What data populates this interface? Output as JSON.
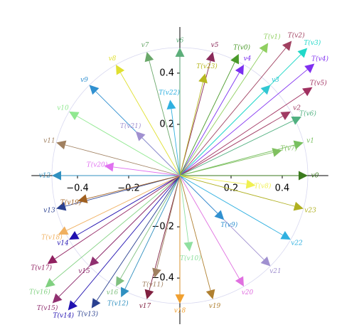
{
  "chart_data": {
    "type": "vector",
    "xlim": [
      -0.58,
      0.58
    ],
    "ylim": [
      -0.58,
      0.58
    ],
    "xticks": [
      {
        "value": -0.4,
        "label": "−0.4"
      },
      {
        "value": -0.2,
        "label": "−0.2"
      },
      0.2,
      0.4
    ],
    "yticks": [
      {
        "value": -0.4,
        "label": "−0.4"
      },
      {
        "value": -0.2,
        "label": "−0.2"
      },
      0.2,
      0.4
    ],
    "arrows": [
      {
        "label": "v0",
        "x": 0.5,
        "y": 0,
        "color": "#3b7a1e"
      },
      {
        "label": "v1",
        "x": 0.483,
        "y": 0.129,
        "color": "#78c060"
      },
      {
        "label": "v2",
        "x": 0.433,
        "y": 0.25,
        "color": "#a03a62"
      },
      {
        "label": "v3",
        "x": 0.354,
        "y": 0.354,
        "color": "#34c4d4"
      },
      {
        "label": "v4",
        "x": 0.25,
        "y": 0.433,
        "color": "#7b2ff0"
      },
      {
        "label": "v5",
        "x": 0.129,
        "y": 0.483,
        "color": "#8a2a5a"
      },
      {
        "label": "v6",
        "x": 0,
        "y": 0.5,
        "color": "#5cae7a"
      },
      {
        "label": "v7",
        "x": -0.129,
        "y": 0.483,
        "color": "#6aa86a"
      },
      {
        "label": "v8",
        "x": -0.25,
        "y": 0.433,
        "color": "#e0e030"
      },
      {
        "label": "v9",
        "x": -0.354,
        "y": 0.354,
        "color": "#3090d0"
      },
      {
        "label": "v10",
        "x": -0.433,
        "y": 0.25,
        "color": "#90e890"
      },
      {
        "label": "v11",
        "x": -0.483,
        "y": 0.129,
        "color": "#a08060"
      },
      {
        "label": "v12",
        "x": -0.5,
        "y": 0,
        "color": "#3090c0"
      },
      {
        "label": "v13",
        "x": -0.483,
        "y": -0.129,
        "color": "#2a4090"
      },
      {
        "label": "v14",
        "x": -0.433,
        "y": -0.25,
        "color": "#2010b0"
      },
      {
        "label": "v15",
        "x": -0.354,
        "y": -0.354,
        "color": "#903070"
      },
      {
        "label": "v16",
        "x": -0.25,
        "y": -0.433,
        "color": "#80c080"
      },
      {
        "label": "v17",
        "x": -0.129,
        "y": -0.483,
        "color": "#802040"
      },
      {
        "label": "v18",
        "x": 0,
        "y": -0.5,
        "color": "#f0a030"
      },
      {
        "label": "v19",
        "x": 0.129,
        "y": -0.483,
        "color": "#b08030"
      },
      {
        "label": "v20",
        "x": 0.25,
        "y": -0.433,
        "color": "#e070e0"
      },
      {
        "label": "v21",
        "x": 0.354,
        "y": -0.354,
        "color": "#a090d0"
      },
      {
        "label": "v22",
        "x": 0.433,
        "y": -0.25,
        "color": "#30b0e0"
      },
      {
        "label": "v23",
        "x": 0.483,
        "y": -0.129,
        "color": "#b0b020"
      },
      {
        "label": "T(v0)",
        "x": 0.23,
        "y": 0.475,
        "color": "#4a9a2a"
      },
      {
        "label": "T(v1)",
        "x": 0.345,
        "y": 0.518,
        "color": "#90cf60"
      },
      {
        "label": "T(v2)",
        "x": 0.437,
        "y": 0.526,
        "color": "#a04060"
      },
      {
        "label": "T(v3)",
        "x": 0.498,
        "y": 0.498,
        "color": "#20d8c8"
      },
      {
        "label": "T(v4)",
        "x": 0.526,
        "y": 0.437,
        "color": "#8030f0"
      },
      {
        "label": "T(v5)",
        "x": 0.518,
        "y": 0.345,
        "color": "#a03060"
      },
      {
        "label": "T(v6)",
        "x": 0.475,
        "y": 0.23,
        "color": "#50b080"
      },
      {
        "label": "T(v7)",
        "x": 0.399,
        "y": 0.099,
        "color": "#80c060"
      },
      {
        "label": "T(v8)",
        "x": 0.296,
        "y": -0.038,
        "color": "#f0f050"
      },
      {
        "label": "T(v9)",
        "x": 0.173,
        "y": -0.173,
        "color": "#3090d0"
      },
      {
        "label": "T(v10)",
        "x": 0.038,
        "y": -0.296,
        "color": "#90e0a0"
      },
      {
        "label": "T(v11)",
        "x": -0.099,
        "y": -0.399,
        "color": "#a08060"
      },
      {
        "label": "T(v12)",
        "x": -0.23,
        "y": -0.475,
        "color": "#3090c0"
      },
      {
        "label": "T(v13)",
        "x": -0.345,
        "y": -0.518,
        "color": "#2a4090"
      },
      {
        "label": "T(v14)",
        "x": -0.437,
        "y": -0.526,
        "color": "#2010b0"
      },
      {
        "label": "T(v15)",
        "x": -0.498,
        "y": -0.498,
        "color": "#903070"
      },
      {
        "label": "T(v16)",
        "x": -0.526,
        "y": -0.437,
        "color": "#80d080"
      },
      {
        "label": "T(v17)",
        "x": -0.518,
        "y": -0.345,
        "color": "#902060"
      },
      {
        "label": "T(v18)",
        "x": -0.475,
        "y": -0.23,
        "color": "#f0b060"
      },
      {
        "label": "T(v19)",
        "x": -0.399,
        "y": -0.099,
        "color": "#a06020"
      },
      {
        "label": "T(v20)",
        "x": -0.296,
        "y": 0.038,
        "color": "#e070f0"
      },
      {
        "label": "T(v21)",
        "x": -0.173,
        "y": 0.173,
        "color": "#a090d0"
      },
      {
        "label": "T(v22)",
        "x": -0.038,
        "y": 0.296,
        "color": "#30b0e0"
      },
      {
        "label": "T(v23)",
        "x": 0.099,
        "y": 0.399,
        "color": "#b8b820"
      }
    ]
  }
}
